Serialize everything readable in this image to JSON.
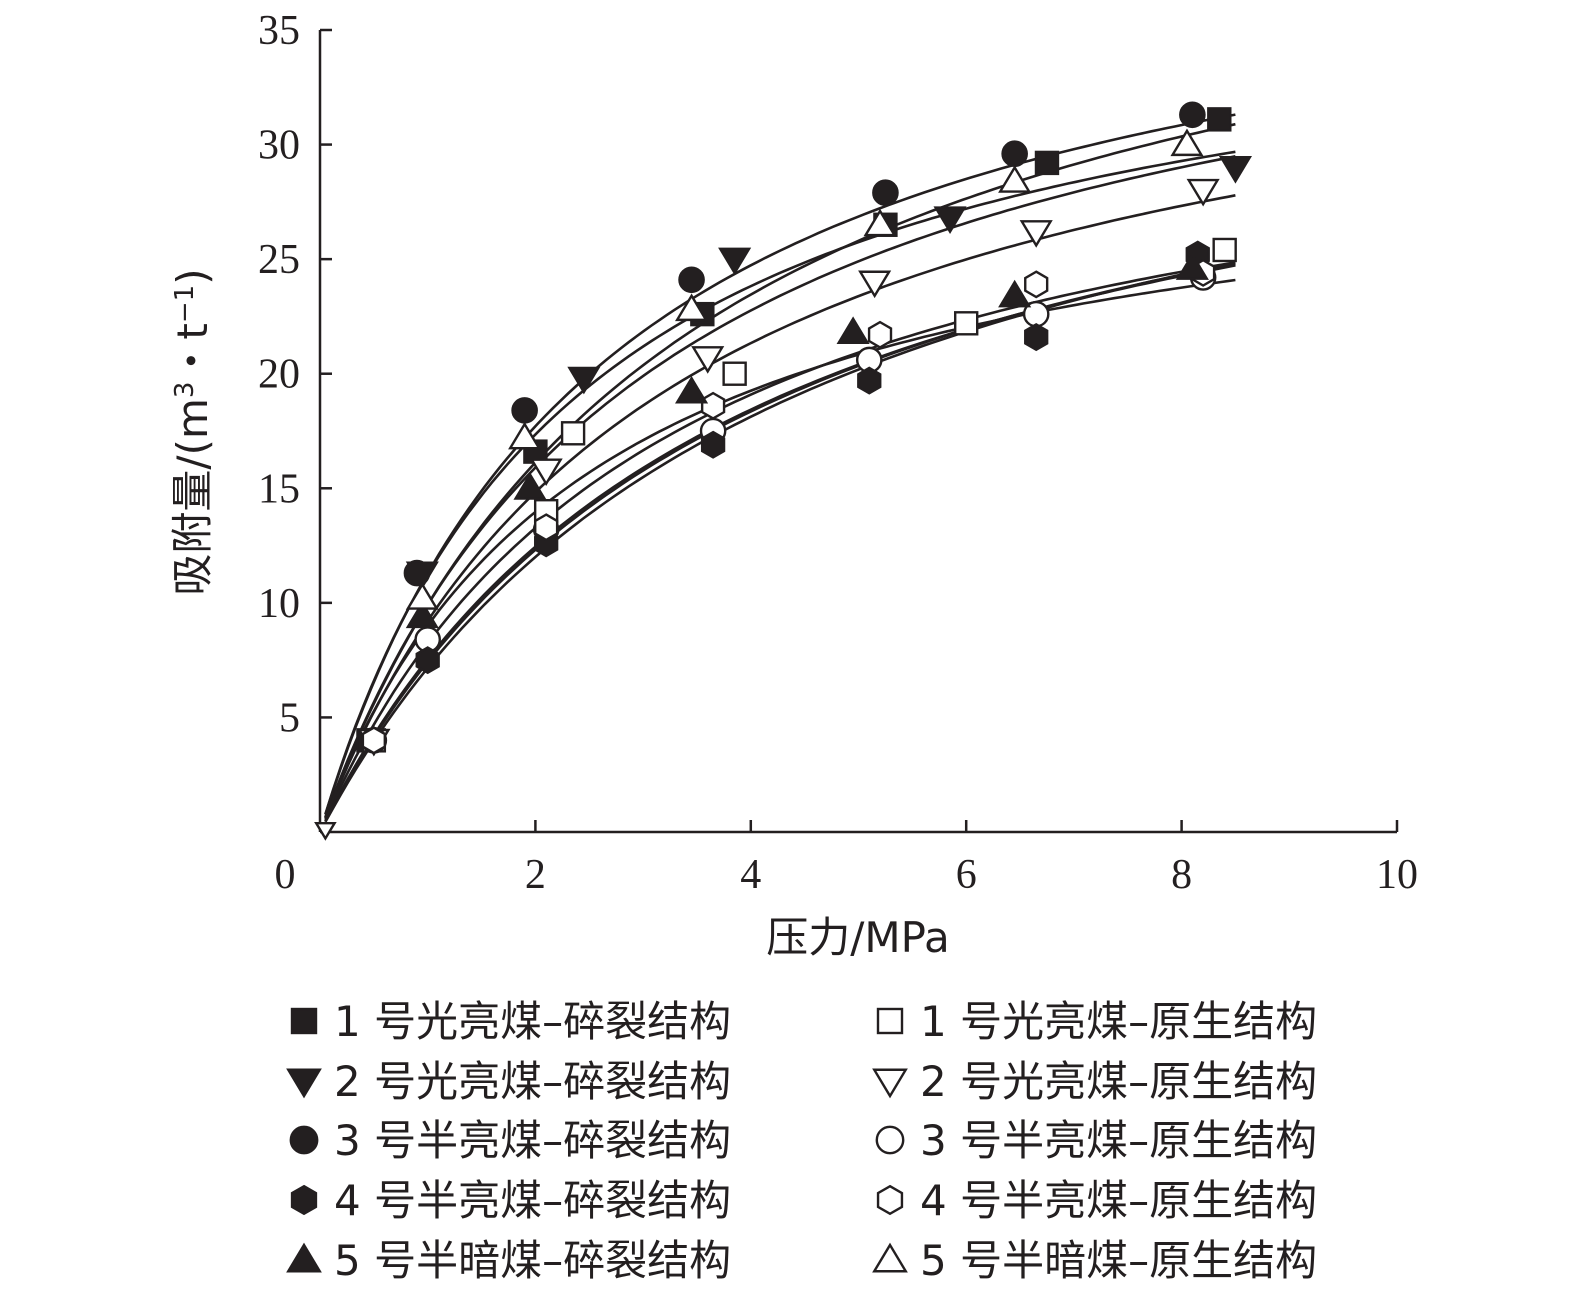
{
  "chart_data": {
    "type": "scatter",
    "title": "",
    "xlabel": "压力/MPa",
    "ylabel_main": "吸附量/(m",
    "ylabel_sup1": "3",
    "ylabel_mid": "・t",
    "ylabel_sup2": "−1",
    "ylabel_end": ")",
    "xlim": [
      0,
      10
    ],
    "ylim": [
      0,
      35
    ],
    "x_ticks": [
      2,
      4,
      6,
      8,
      10
    ],
    "y_ticks": [
      5,
      10,
      15,
      20,
      25,
      30,
      35
    ],
    "origin_label": "0",
    "grid": false,
    "legend_position": "bottom",
    "series": [
      {
        "name": "1 号光亮煤–碎裂结构",
        "marker": "square",
        "filled": true,
        "x": [
          0.45,
          2.0,
          3.55,
          5.25,
          6.75,
          8.35
        ],
        "y": [
          4.0,
          16.6,
          22.6,
          26.5,
          29.2,
          31.1
        ],
        "fit": {
          "a": 43.0,
          "b": 0.3
        }
      },
      {
        "name": "1 号光亮煤–原生结构",
        "marker": "square",
        "filled": false,
        "x": [
          0.5,
          2.1,
          2.35,
          3.85,
          6.0,
          8.4
        ],
        "y": [
          4.0,
          14.0,
          17.4,
          20.0,
          22.2,
          25.4
        ],
        "fit": {
          "a": 35.5,
          "b": 0.27
        }
      },
      {
        "name": "2 号光亮煤–碎裂结构",
        "marker": "triangle-down",
        "filled": true,
        "x": [
          0.5,
          0.95,
          2.45,
          3.85,
          5.85,
          8.5
        ],
        "y": [
          4.0,
          11.3,
          19.8,
          25.0,
          26.8,
          29.0
        ],
        "fit": {
          "a": 40.0,
          "b": 0.33
        }
      },
      {
        "name": "2 号光亮煤–原生结构",
        "marker": "triangle-down",
        "filled": false,
        "x": [
          0.5,
          2.1,
          3.6,
          5.15,
          6.65,
          8.2
        ],
        "y": [
          4.0,
          15.8,
          20.7,
          24.0,
          26.2,
          28.0
        ],
        "fit": {
          "a": 38.0,
          "b": 0.32
        }
      },
      {
        "name": "3 号半亮煤–碎裂结构",
        "marker": "circle",
        "filled": true,
        "x": [
          0.9,
          1.9,
          3.45,
          5.25,
          6.45,
          8.1
        ],
        "y": [
          11.3,
          18.4,
          24.1,
          27.9,
          29.6,
          31.3
        ],
        "fit": {
          "a": 41.0,
          "b": 0.38
        }
      },
      {
        "name": "3 号半亮煤–原生结构",
        "marker": "circle",
        "filled": false,
        "x": [
          0.5,
          1.0,
          2.1,
          3.65,
          5.1,
          6.65,
          8.2
        ],
        "y": [
          4.0,
          8.4,
          13.2,
          17.5,
          20.6,
          22.6,
          24.2
        ],
        "fit": {
          "a": 36.0,
          "b": 0.26
        }
      },
      {
        "name": "4 号半亮煤–碎裂结构",
        "marker": "hexagon",
        "filled": true,
        "x": [
          0.5,
          1.0,
          2.1,
          3.65,
          5.1,
          6.65,
          8.15
        ],
        "y": [
          4.0,
          7.5,
          12.6,
          16.9,
          19.7,
          21.6,
          25.2
        ],
        "fit": {
          "a": 37.0,
          "b": 0.24
        }
      },
      {
        "name": "4 号半亮煤–原生结构",
        "marker": "hexagon",
        "filled": false,
        "x": [
          0.5,
          2.1,
          3.65,
          5.2,
          6.65,
          8.2
        ],
        "y": [
          4.0,
          13.3,
          18.6,
          21.7,
          23.9,
          24.4
        ],
        "fit": {
          "a": 34.0,
          "b": 0.32
        }
      },
      {
        "name": "5 号半暗煤–碎裂结构",
        "marker": "triangle-up",
        "filled": true,
        "x": [
          0.95,
          1.95,
          3.45,
          4.95,
          6.45,
          8.1
        ],
        "y": [
          9.4,
          15.0,
          19.2,
          21.8,
          23.4,
          24.6
        ],
        "fit": {
          "a": 31.0,
          "b": 0.41
        }
      },
      {
        "name": "5 号半暗煤–原生结构",
        "marker": "triangle-up",
        "filled": false,
        "x": [
          0.95,
          1.9,
          3.45,
          5.2,
          6.45,
          8.05
        ],
        "y": [
          10.2,
          17.2,
          22.8,
          26.5,
          28.4,
          30.0
        ],
        "fit": {
          "a": 38.0,
          "b": 0.42
        }
      }
    ]
  }
}
